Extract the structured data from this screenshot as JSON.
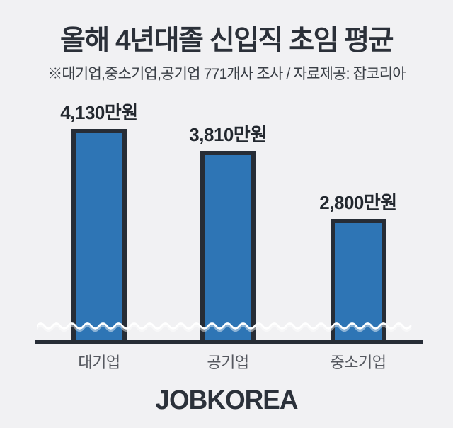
{
  "header": {
    "title": "올해 4년대졸 신입직 초임 평균",
    "subtitle": "※대기업,중소기업,공기업 771개사 조사 / 자료제공: 잡코리아"
  },
  "chart_data": {
    "type": "bar",
    "title": "올해 4년대졸 신입직 초임 평균",
    "categories": [
      "대기업",
      "공기업",
      "중소기업"
    ],
    "values": [
      4130,
      3810,
      2800
    ],
    "value_labels": [
      "4,130만원",
      "3,810만원",
      "2,800만원"
    ],
    "unit": "만원",
    "axis_break": true,
    "legend": "none",
    "grid": false,
    "bar_color": "#2e75b5",
    "bar_border_color": "#272d36",
    "background_color": "#f1f1f3",
    "axis_break_wave_color": "#ffffff"
  },
  "footer": {
    "logo": "JOBKOREA"
  }
}
